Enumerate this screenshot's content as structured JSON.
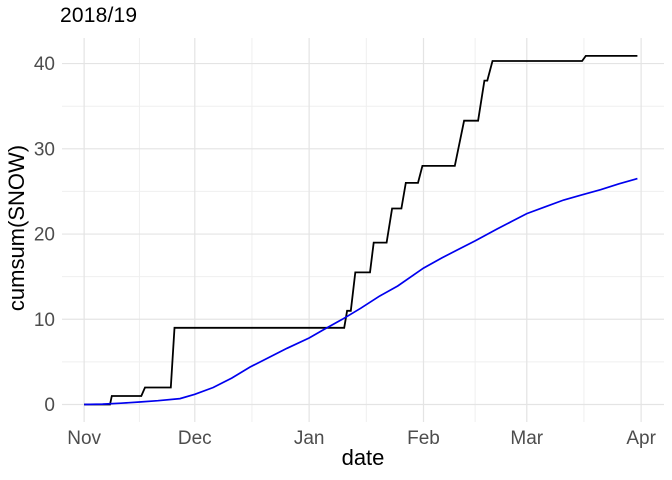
{
  "chart_data": {
    "type": "line",
    "title": "2018/19",
    "xlabel": "date",
    "ylabel": "cumsum(SNOW)",
    "legend": "none",
    "grid": {
      "background": "#ffffff",
      "major_color": "#e4e4e4",
      "minor_color": "#efefef"
    },
    "x_axis": {
      "unit": "days since Nov 1",
      "domain": [
        -6,
        157.2
      ],
      "ticks": [
        {
          "label": "Nov",
          "day": 0
        },
        {
          "label": "Dec",
          "day": 30
        },
        {
          "label": "Jan",
          "day": 61
        },
        {
          "label": "Feb",
          "day": 92
        },
        {
          "label": "Mar",
          "day": 120
        },
        {
          "label": "Apr",
          "day": 151
        }
      ],
      "minor_days": [
        15,
        45.5,
        76.5,
        106,
        135.5
      ]
    },
    "y_axis": {
      "domain": [
        -2.05,
        43.0
      ],
      "ticks": [
        0,
        10,
        20,
        30,
        40
      ],
      "minor": [
        5,
        15,
        25,
        35
      ]
    },
    "series": [
      {
        "id": "snow-cumsum-step-line",
        "style": "step",
        "color": "#000000",
        "width": 1.8,
        "points": [
          [
            0,
            0
          ],
          [
            7,
            0
          ],
          [
            7.5,
            1
          ],
          [
            15.5,
            1
          ],
          [
            16.5,
            2
          ],
          [
            23.5,
            2
          ],
          [
            24.5,
            9
          ],
          [
            70.5,
            9
          ],
          [
            71.3,
            11
          ],
          [
            72.3,
            11
          ],
          [
            73.5,
            15.5
          ],
          [
            77.5,
            15.5
          ],
          [
            78.5,
            19
          ],
          [
            82,
            19
          ],
          [
            83.5,
            23
          ],
          [
            86,
            23
          ],
          [
            87.2,
            26
          ],
          [
            90.5,
            26
          ],
          [
            91.7,
            28
          ],
          [
            100.5,
            28
          ],
          [
            103,
            33.3
          ],
          [
            106.8,
            33.3
          ],
          [
            108.5,
            38
          ],
          [
            109.3,
            38
          ],
          [
            110.7,
            40.3
          ],
          [
            135,
            40.3
          ],
          [
            136,
            40.9
          ],
          [
            150,
            40.9
          ]
        ]
      },
      {
        "id": "smooth-blue-curve",
        "style": "line",
        "color": "#0000ee",
        "width": 1.7,
        "points": [
          [
            0,
            0
          ],
          [
            5,
            0.05
          ],
          [
            10,
            0.15
          ],
          [
            15,
            0.3
          ],
          [
            20,
            0.45
          ],
          [
            26,
            0.7
          ],
          [
            30,
            1.2
          ],
          [
            35,
            2.0
          ],
          [
            40,
            3.1
          ],
          [
            45,
            4.4
          ],
          [
            50,
            5.5
          ],
          [
            55,
            6.6
          ],
          [
            61,
            7.8
          ],
          [
            65,
            8.8
          ],
          [
            70,
            10.0
          ],
          [
            75,
            11.3
          ],
          [
            80,
            12.7
          ],
          [
            85,
            13.9
          ],
          [
            92,
            16.0
          ],
          [
            97,
            17.2
          ],
          [
            101,
            18.1
          ],
          [
            106,
            19.2
          ],
          [
            112,
            20.6
          ],
          [
            116,
            21.5
          ],
          [
            120,
            22.4
          ],
          [
            125,
            23.2
          ],
          [
            130,
            24.0
          ],
          [
            135,
            24.6
          ],
          [
            140,
            25.2
          ],
          [
            145,
            25.9
          ],
          [
            150,
            26.5
          ]
        ]
      }
    ]
  },
  "text_colors": {
    "title": "#000000",
    "axis_title": "#000000",
    "tick_label": "#4d4d4d"
  }
}
